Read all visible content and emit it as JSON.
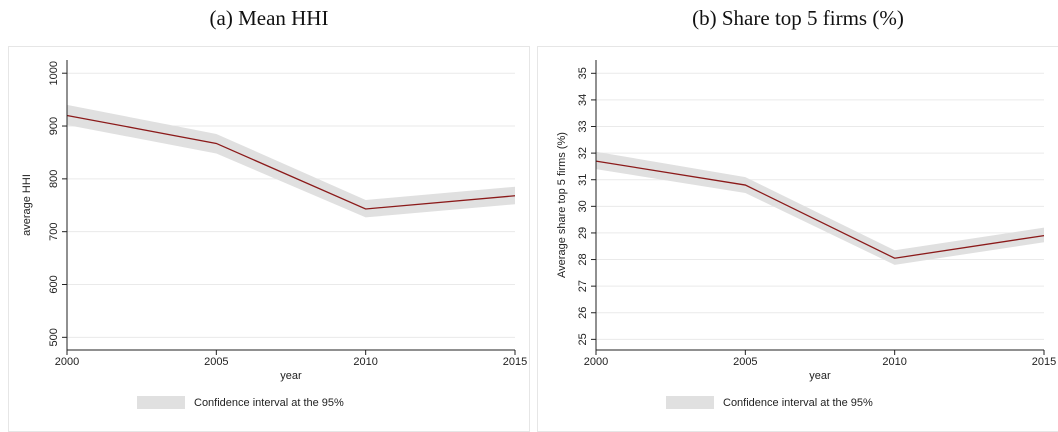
{
  "chart_data": [
    {
      "type": "line",
      "title": "(a) Mean HHI",
      "x_label": "year",
      "y_label": "average HHI",
      "x": [
        2000,
        2005,
        2010,
        2015
      ],
      "values": [
        920,
        867,
        743,
        768
      ],
      "color": "#8b1a1a",
      "ci": {
        "name": "Confidence interval at the 95%",
        "color": "#e0e0e0",
        "lower": [
          902,
          848,
          727,
          752
        ],
        "upper": [
          940,
          885,
          760,
          785
        ]
      },
      "xlim": [
        2000,
        2015
      ],
      "xticks": [
        2000,
        2005,
        2010,
        2015
      ],
      "ylim": [
        476,
        1025
      ],
      "yticks": [
        500,
        600,
        700,
        800,
        900,
        1000
      ],
      "grid": true
    },
    {
      "type": "line",
      "title": "(b) Share top 5 firms (%)",
      "x_label": "year",
      "y_label": "Average share top 5 firms (%)",
      "x": [
        2000,
        2005,
        2010,
        2015
      ],
      "values": [
        31.7,
        30.8,
        28.05,
        28.9
      ],
      "color": "#8b1a1a",
      "ci": {
        "name": "Confidence interval at the 95%",
        "color": "#e0e0e0",
        "lower": [
          31.4,
          30.5,
          27.8,
          28.65
        ],
        "upper": [
          32.05,
          31.1,
          28.35,
          29.2
        ]
      },
      "xlim": [
        2000,
        2015
      ],
      "xticks": [
        2000,
        2005,
        2010,
        2015
      ],
      "ylim": [
        24.6,
        35.5
      ],
      "yticks": [
        25,
        26,
        27,
        28,
        29,
        30,
        31,
        32,
        33,
        34,
        35
      ],
      "grid": true
    }
  ]
}
